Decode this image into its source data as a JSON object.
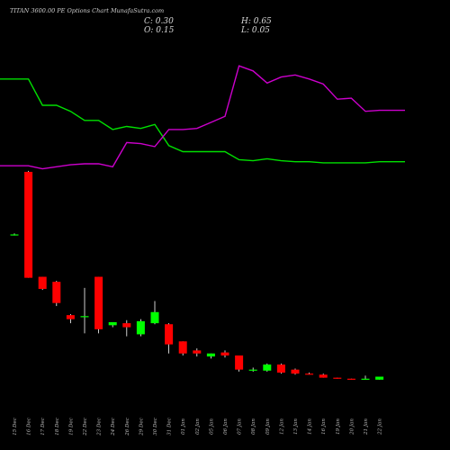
{
  "header": {
    "title": "TITAN 3600.00 PE Options  Chart MunafaSutra.com",
    "close": "C: 0.30",
    "open": "O: 0.15",
    "high": "H: 0.65",
    "low": "L: 0.05"
  },
  "colors": {
    "background": "#000000",
    "up": "#00ff00",
    "down": "#ff0000",
    "line_green": "#00e000",
    "line_magenta": "#cc00cc",
    "wick": "#ffffff"
  },
  "chart_data": {
    "type": "candlestick",
    "categories": [
      "15 Dec",
      "16 Dec",
      "17 Dec",
      "18 Dec",
      "19 Dec",
      "22 Dec",
      "23 Dec",
      "24 Dec",
      "26 Dec",
      "29 Dec",
      "30 Dec",
      "31 Dec",
      "01 Jan",
      "02 Jan",
      "05 Jan",
      "06 Jan",
      "07 Jan",
      "08 Jan",
      "09 Jan",
      "12 Jan",
      "13 Jan",
      "14 Jan",
      "16 Jan",
      "19 Jan",
      "20 Jan",
      "21 Jan",
      "22 Jan"
    ],
    "candles": [
      {
        "open": 118,
        "high": 119,
        "low": 117,
        "close": 118
      },
      {
        "open": 180,
        "high": 181,
        "low": 75,
        "close": 75
      },
      {
        "open": 76,
        "high": 76,
        "low": 63,
        "close": 64
      },
      {
        "open": 71,
        "high": 72,
        "low": 47,
        "close": 50
      },
      {
        "open": 38,
        "high": 39,
        "low": 30,
        "close": 34
      },
      {
        "open": 36,
        "high": 65,
        "low": 20,
        "close": 37
      },
      {
        "open": 76,
        "high": 76,
        "low": 20,
        "close": 24
      },
      {
        "open": 28,
        "high": 31,
        "low": 26,
        "close": 31
      },
      {
        "open": 30,
        "high": 33,
        "low": 17,
        "close": 26
      },
      {
        "open": 19,
        "high": 34,
        "low": 17,
        "close": 32
      },
      {
        "open": 30,
        "high": 52,
        "low": 29,
        "close": 41
      },
      {
        "open": 29,
        "high": 30,
        "low": 0,
        "close": 9
      },
      {
        "open": 12,
        "high": 12,
        "low": -2,
        "close": 0
      },
      {
        "open": 3,
        "high": 5,
        "low": -3,
        "close": 0
      },
      {
        "open": -3,
        "high": 0,
        "low": -5,
        "close": 0
      },
      {
        "open": 1,
        "high": 3,
        "low": -4,
        "close": -2
      },
      {
        "open": -2,
        "high": -2,
        "low": -18,
        "close": -16
      },
      {
        "open": -17,
        "high": -14,
        "low": -18,
        "close": -16
      },
      {
        "open": -17,
        "high": -10,
        "low": -18,
        "close": -11
      },
      {
        "open": -11,
        "high": -10,
        "low": -20,
        "close": -19
      },
      {
        "open": -16,
        "high": -15,
        "low": -21,
        "close": -20
      },
      {
        "open": -20,
        "high": -19,
        "low": -21,
        "close": -21
      },
      {
        "open": -21,
        "high": -20,
        "low": -24,
        "close": -24
      },
      {
        "open": -24,
        "high": -24,
        "low": -25,
        "close": -25
      },
      {
        "open": -25,
        "high": -25,
        "low": -26,
        "close": -26
      },
      {
        "open": -26,
        "high": -22,
        "low": -26,
        "close": -25
      },
      {
        "open": -26,
        "high": -24,
        "low": -26,
        "close": -23
      }
    ],
    "series": [
      {
        "values": [
          272,
          272,
          246,
          246,
          240,
          231,
          231,
          222,
          225,
          223,
          227,
          206,
          200,
          200,
          200,
          200,
          192,
          191,
          193,
          191,
          190,
          190,
          189,
          189,
          189,
          189,
          190
        ],
        "y_end": 190
      },
      {
        "values": [
          186,
          186,
          183,
          185,
          187,
          188,
          188,
          185,
          209,
          208,
          205,
          222,
          222,
          223,
          229,
          235,
          285,
          280,
          268,
          274,
          276,
          272,
          267,
          252,
          253,
          240,
          241
        ],
        "y_end": 241
      }
    ],
    "ylim": [
      -60,
      320
    ],
    "grid": false
  }
}
